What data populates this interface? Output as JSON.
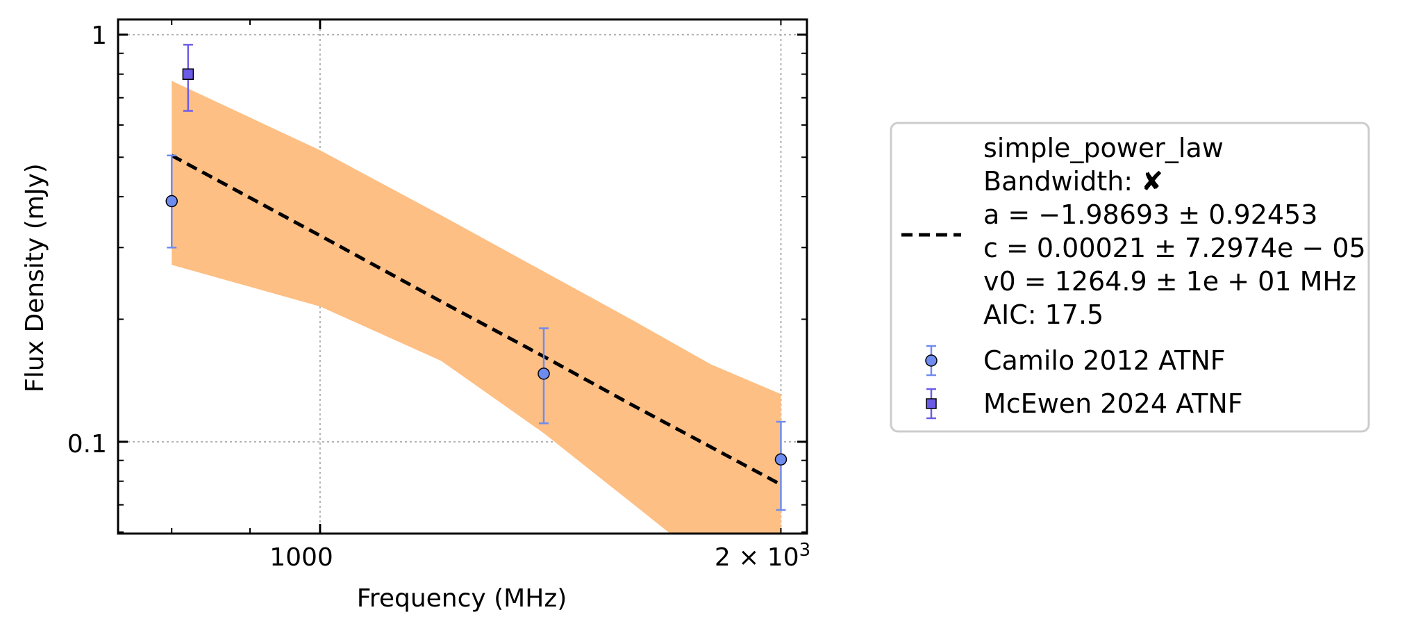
{
  "chart_data": {
    "type": "scatter",
    "xlabel": "Frequency (MHz)",
    "ylabel": "Flux Density (mJy)",
    "xscale": "log",
    "yscale": "log",
    "xlim": [
      738,
      2080
    ],
    "ylim": [
      0.0595,
      1.09
    ],
    "grid": true,
    "legend_position": "outside right",
    "x_tick_labels": [
      {
        "value": 1000,
        "text": "1000"
      },
      {
        "value": 2000,
        "text": "2 × 10",
        "sup": "3"
      }
    ],
    "y_tick_labels": [
      {
        "value": 1,
        "text": "1"
      },
      {
        "value": 0.1,
        "text": "0.1"
      }
    ],
    "fit": {
      "name": "simple_power_law",
      "x": [
        800,
        1000,
        1200,
        1400,
        1600,
        1800,
        2000
      ],
      "y": [
        0.505,
        0.321,
        0.221,
        0.162,
        0.123,
        0.0971,
        0.0785
      ],
      "band_upper": [
        0.77,
        0.52,
        0.36,
        0.262,
        0.199,
        0.155,
        0.131
      ],
      "band_lower": [
        0.272,
        0.215,
        0.158,
        0.105,
        0.0705,
        0.0495,
        0.0395
      ],
      "band_color": "#fdbf84",
      "line_color": "#000000",
      "line_style": "dashed"
    },
    "series": [
      {
        "name": "Camilo 2012 ATNF",
        "marker": "circle",
        "color": "#6e8cf0",
        "error_color": "#6e8cf0",
        "points": [
          {
            "x": 800,
            "y": 0.39,
            "yerr_low": 0.09,
            "yerr_high": 0.115
          },
          {
            "x": 1400,
            "y": 0.147,
            "yerr_low": 0.036,
            "yerr_high": 0.043
          },
          {
            "x": 2000,
            "y": 0.0905,
            "yerr_low": 0.0225,
            "yerr_high": 0.0215
          }
        ]
      },
      {
        "name": "McEwen 2024 ATNF",
        "marker": "square",
        "color": "#6b5ce7",
        "error_color": "#6b5ce7",
        "points": [
          {
            "x": 820,
            "y": 0.8,
            "yerr_low": 0.15,
            "yerr_high": 0.145
          }
        ]
      }
    ],
    "legend": {
      "fit_lines": [
        "simple_power_law",
        "Bandwidth: ✘",
        "a = −1.98693 ± 0.92453",
        "c = 0.00021 ± 7.2974e − 05",
        "v0 = 1264.9 ± 1e + 01 MHz",
        "AIC: 17.5"
      ],
      "series_labels": [
        "Camilo 2012 ATNF",
        "McEwen 2024 ATNF"
      ]
    }
  }
}
